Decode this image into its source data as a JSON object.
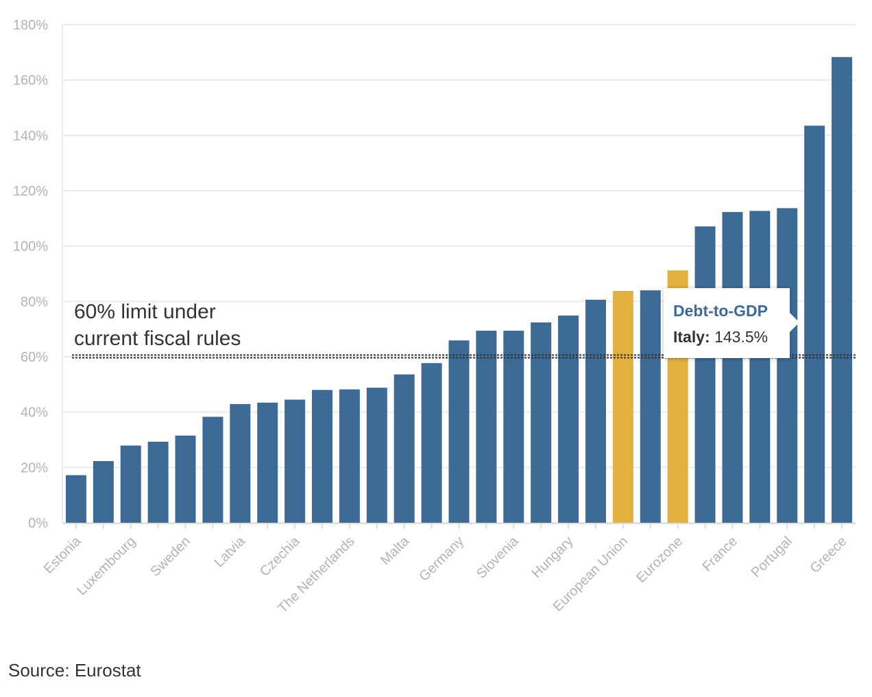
{
  "chart_data": {
    "type": "bar",
    "title": "",
    "xlabel": "",
    "ylabel": "",
    "ylim": [
      0,
      180
    ],
    "yticks": [
      "0%",
      "20%",
      "40%",
      "60%",
      "80%",
      "100%",
      "120%",
      "140%",
      "160%",
      "180%"
    ],
    "grid": true,
    "categories": [
      "Estonia",
      "",
      "Luxembourg",
      "",
      "Sweden",
      "",
      "Latvia",
      "",
      "Czechia",
      "",
      "The Netherlands",
      "",
      "Malta",
      "",
      "Germany",
      "",
      "Slovenia",
      "",
      "Hungary",
      "",
      "European Union",
      "",
      "Eurozone",
      "",
      "France",
      "",
      "Portugal",
      "",
      "Greece"
    ],
    "values": [
      17.2,
      22.3,
      27.9,
      29.3,
      31.5,
      38.3,
      42.9,
      43.4,
      44.5,
      48.0,
      48.2,
      48.8,
      53.6,
      57.7,
      65.9,
      69.4,
      69.4,
      72.4,
      74.9,
      80.6,
      83.8,
      84.0,
      91.2,
      107.1,
      112.3,
      112.7,
      113.7,
      143.5,
      168.3
    ],
    "highlight_indices": [
      20,
      22
    ],
    "colors": {
      "bar": "#3e6a96",
      "highlight": "#e3b13f",
      "reference_line": "#333333"
    },
    "reference_line": {
      "value": 60,
      "label_lines": [
        "60% limit under",
        "current fiscal rules"
      ]
    },
    "tooltip": {
      "title": "Debt-to-GDP",
      "label": "Italy:",
      "value": "143.5%"
    }
  },
  "source": "Source: Eurostat"
}
